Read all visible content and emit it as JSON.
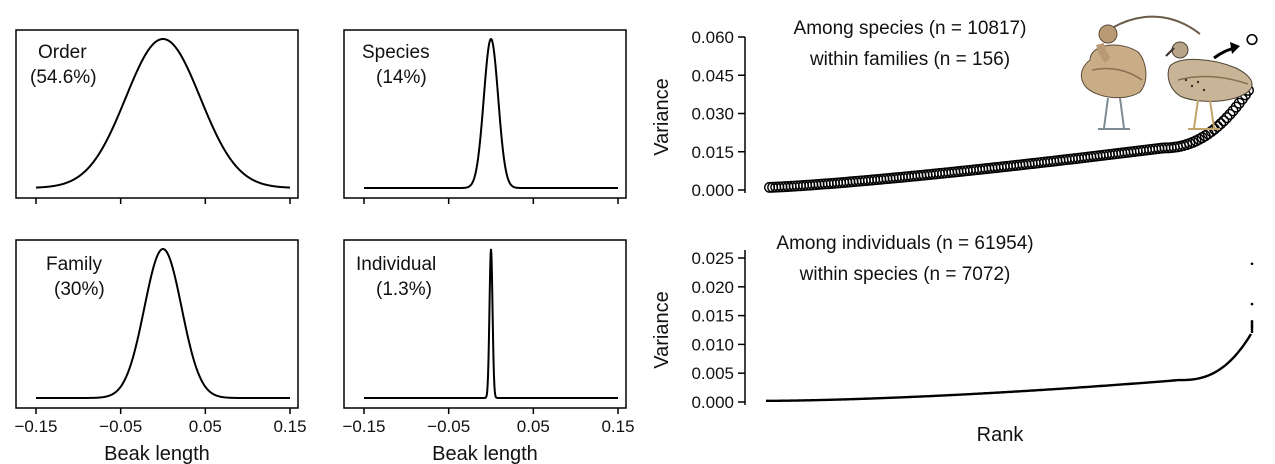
{
  "colors": {
    "line": "#000000",
    "background": "#ffffff"
  },
  "chart_data": [
    {
      "type": "line",
      "panel": "density-order",
      "label": "Order",
      "percent": "(54.6%)",
      "sd": 0.044,
      "xlim": [
        -0.15,
        0.15
      ],
      "xticks": [
        -0.15,
        -0.05,
        0.05,
        0.15
      ],
      "xtick_labels": [],
      "xlabel": ""
    },
    {
      "type": "line",
      "panel": "density-species",
      "label": "Species",
      "percent": "(14%)",
      "sd": 0.0085,
      "xlim": [
        -0.15,
        0.15
      ],
      "xticks": [
        -0.15,
        -0.05,
        0.05,
        0.15
      ],
      "xtick_labels": [],
      "xlabel": ""
    },
    {
      "type": "line",
      "panel": "density-family",
      "label": "Family",
      "percent": "(30%)",
      "sd": 0.022,
      "xlim": [
        -0.15,
        0.15
      ],
      "xticks": [
        -0.15,
        -0.05,
        0.05,
        0.15
      ],
      "xtick_labels": [
        "−0.15",
        "−0.05",
        "0.05",
        "0.15"
      ],
      "xlabel": "Beak length"
    },
    {
      "type": "line",
      "panel": "density-individual",
      "label": "Individual",
      "percent": "(1.3%)",
      "sd": 0.0018,
      "xlim": [
        -0.15,
        0.15
      ],
      "xticks": [
        -0.15,
        -0.05,
        0.05,
        0.15
      ],
      "xtick_labels": [
        "−0.15",
        "−0.05",
        "0.05",
        "0.15"
      ],
      "xlabel": "Beak length"
    },
    {
      "type": "scatter",
      "panel": "rank-species",
      "title_line1": "Among species (n = 10817)",
      "title_line2": "within families (n = 156)",
      "ylabel": "Variance",
      "xlabel": "",
      "ylim": [
        0,
        0.06
      ],
      "yticks": [
        0,
        0.015,
        0.03,
        0.045,
        0.06
      ],
      "ytick_labels": [
        "0.000",
        "0.015",
        "0.030",
        "0.045",
        "0.060"
      ],
      "n_points": 156,
      "marker": "open-circle",
      "outlier_y": 0.059,
      "y_range_main": [
        0.001,
        0.04
      ]
    },
    {
      "type": "scatter",
      "panel": "rank-individual",
      "title_line1": "Among individuals (n = 61954)",
      "title_line2": "within species (n = 7072)",
      "ylabel": "Variance",
      "xlabel": "Rank",
      "ylim": [
        0,
        0.025
      ],
      "yticks": [
        0,
        0.005,
        0.01,
        0.015,
        0.02,
        0.025
      ],
      "ytick_labels": [
        "0.000",
        "0.005",
        "0.010",
        "0.015",
        "0.020",
        "0.025"
      ],
      "n_points": 7072,
      "marker": "dot",
      "top_values": [
        0.024,
        0.017,
        0.014,
        0.0138
      ]
    }
  ]
}
